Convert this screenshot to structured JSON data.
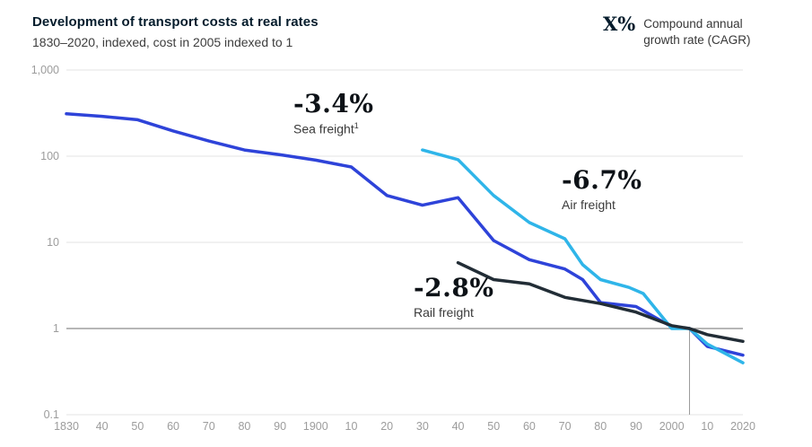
{
  "header": {
    "title": "Development of transport costs at real rates",
    "subtitle": "1830–2020, indexed, cost in 2005 indexed to 1"
  },
  "legend": {
    "symbol": "X%",
    "description_line1": "Compound annual",
    "description_line2": "growth rate (CAGR)"
  },
  "annotations": [
    {
      "id": "sea",
      "cagr": "-3.4%",
      "label": "Sea freight",
      "footnote_marker": "1"
    },
    {
      "id": "air",
      "cagr": "-6.7%",
      "label": "Air freight",
      "footnote_marker": ""
    },
    {
      "id": "rail",
      "cagr": "-2.8%",
      "label": "Rail freight",
      "footnote_marker": ""
    }
  ],
  "colors": {
    "sea_line": "#2e43d9",
    "air_line": "#2fb5e9",
    "rail_line": "#222d36",
    "gridline": "#e3e3e3",
    "gridline_emphasis": "#8a8a8a",
    "reference_line": "#9a9a9a",
    "axis_text": "#9c9c9c",
    "title_text": "#051c2c"
  },
  "chart_data": {
    "type": "line",
    "title": "Development of transport costs at real rates",
    "subtitle": "1830–2020, indexed, cost in 2005 indexed to 1",
    "y_scale": "log",
    "xlim": [
      1830,
      2020
    ],
    "ylim": [
      0.1,
      1000
    ],
    "grid": "horizontal",
    "x_axis": {
      "ticks": [
        {
          "year": 1830,
          "label": "1830"
        },
        {
          "year": 1840,
          "label": "40"
        },
        {
          "year": 1850,
          "label": "50"
        },
        {
          "year": 1860,
          "label": "60"
        },
        {
          "year": 1870,
          "label": "70"
        },
        {
          "year": 1880,
          "label": "80"
        },
        {
          "year": 1890,
          "label": "90"
        },
        {
          "year": 1900,
          "label": "1900"
        },
        {
          "year": 1910,
          "label": "10"
        },
        {
          "year": 1920,
          "label": "20"
        },
        {
          "year": 1930,
          "label": "30"
        },
        {
          "year": 1940,
          "label": "40"
        },
        {
          "year": 1950,
          "label": "50"
        },
        {
          "year": 1960,
          "label": "60"
        },
        {
          "year": 1970,
          "label": "70"
        },
        {
          "year": 1980,
          "label": "80"
        },
        {
          "year": 1990,
          "label": "90"
        },
        {
          "year": 2000,
          "label": "2000"
        },
        {
          "year": 2010,
          "label": "10"
        },
        {
          "year": 2020,
          "label": "2020"
        }
      ]
    },
    "y_axis": {
      "ticks": [
        {
          "value": 1000,
          "label": "1,000",
          "emphasis": false
        },
        {
          "value": 100,
          "label": "100",
          "emphasis": false
        },
        {
          "value": 10,
          "label": "10",
          "emphasis": false
        },
        {
          "value": 1,
          "label": "1",
          "emphasis": true
        },
        {
          "value": 0.1,
          "label": "0.1",
          "emphasis": false
        }
      ]
    },
    "reference_line": {
      "year": 2005,
      "value_from": 1,
      "value_to": 0.1
    },
    "series": [
      {
        "name": "Sea freight",
        "cagr": "-3.4%",
        "color": "#2e43d9",
        "points": [
          [
            1830,
            310
          ],
          [
            1840,
            290
          ],
          [
            1850,
            265
          ],
          [
            1860,
            196
          ],
          [
            1870,
            150
          ],
          [
            1880,
            118
          ],
          [
            1890,
            104
          ],
          [
            1900,
            90
          ],
          [
            1910,
            75
          ],
          [
            1920,
            35
          ],
          [
            1930,
            27
          ],
          [
            1940,
            33
          ],
          [
            1950,
            10.5
          ],
          [
            1960,
            6.3
          ],
          [
            1970,
            4.9
          ],
          [
            1975,
            3.7
          ],
          [
            1980,
            2.0
          ],
          [
            1990,
            1.8
          ],
          [
            2000,
            1.05
          ],
          [
            2005,
            1.0
          ],
          [
            2010,
            0.62
          ],
          [
            2020,
            0.49
          ]
        ]
      },
      {
        "name": "Air freight",
        "cagr": "-6.7%",
        "color": "#2fb5e9",
        "points": [
          [
            1930,
            118
          ],
          [
            1940,
            91
          ],
          [
            1950,
            35
          ],
          [
            1960,
            17
          ],
          [
            1970,
            11
          ],
          [
            1975,
            5.5
          ],
          [
            1980,
            3.7
          ],
          [
            1988,
            3.0
          ],
          [
            1992,
            2.55
          ],
          [
            2000,
            1.0
          ],
          [
            2005,
            1.0
          ],
          [
            2010,
            0.66
          ],
          [
            2020,
            0.4
          ]
        ]
      },
      {
        "name": "Rail freight",
        "cagr": "-2.8%",
        "color": "#222d36",
        "points": [
          [
            1940,
            5.8
          ],
          [
            1950,
            3.7
          ],
          [
            1960,
            3.3
          ],
          [
            1970,
            2.3
          ],
          [
            1980,
            1.95
          ],
          [
            1990,
            1.55
          ],
          [
            2000,
            1.08
          ],
          [
            2005,
            1.0
          ],
          [
            2010,
            0.85
          ],
          [
            2020,
            0.71
          ]
        ]
      }
    ]
  }
}
